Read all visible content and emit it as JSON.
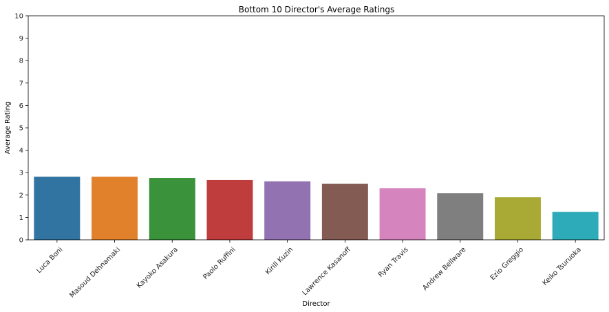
{
  "chart_data": {
    "type": "bar",
    "title": "Bottom 10 Director's Average Ratings",
    "xlabel": "Director",
    "ylabel": "Average Rating",
    "ylim": [
      0,
      10
    ],
    "yticks": [
      "0",
      "1",
      "2",
      "3",
      "4",
      "5",
      "6",
      "7",
      "8",
      "9",
      "10"
    ],
    "categories": [
      "Luca Boni",
      "Masoud Dehnamaki",
      "Kayoko Asakura",
      "Paolo Ruffini",
      "Kirill Kuzin",
      "Lawrence Kasanoff",
      "Ryan Travis",
      "Andrew Bellware",
      "Ezio Greggio",
      "Keiko Tsuruoka"
    ],
    "values": [
      2.82,
      2.82,
      2.76,
      2.67,
      2.61,
      2.5,
      2.3,
      2.08,
      1.9,
      1.25
    ],
    "colors": [
      "#3274a1",
      "#e1812c",
      "#3a923a",
      "#c03d3e",
      "#9372b2",
      "#845b53",
      "#d684bd",
      "#7f7f7f",
      "#a9aa35",
      "#2eabb8"
    ],
    "grid": false,
    "legend": "none"
  }
}
